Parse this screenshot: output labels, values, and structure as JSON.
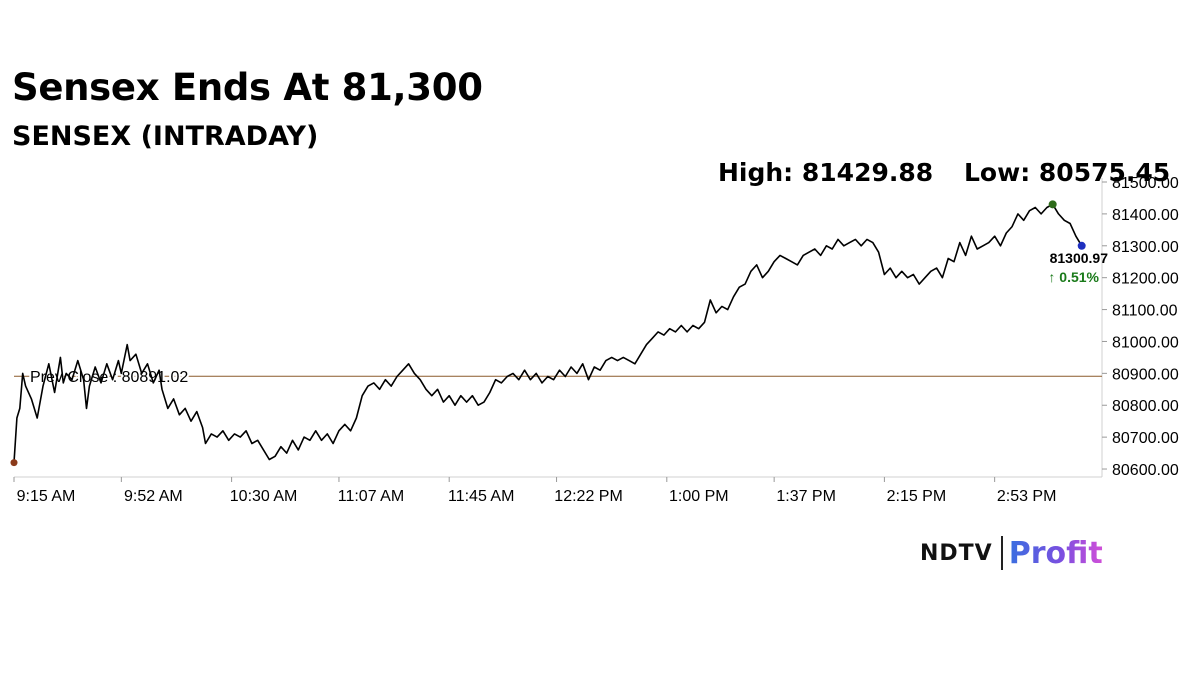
{
  "header": {
    "headline": "Sensex Ends At 81,300",
    "subheadline": "SENSEX (INTRADAY)",
    "high_label": "High: 81429.88",
    "low_label": "Low: 80575.45"
  },
  "brand": {
    "ndtv": "NDTV",
    "profit": "Profit"
  },
  "colors": {
    "line": "#000000",
    "prev_close_line": "#8b5a2b",
    "up_change": "#1a7a1a",
    "start_dot": "#8b3a1a",
    "high_dot": "#2e6b1a",
    "last_dot": "#1f2fbf"
  },
  "chart_data": {
    "type": "line",
    "title": "SENSEX (INTRADAY)",
    "xlabel": "",
    "ylabel": "",
    "grid": false,
    "ylim": [
      80575,
      81500
    ],
    "y_ticks": [
      81500,
      81400,
      81300,
      81200,
      81100,
      81000,
      80900,
      80800,
      80700,
      80600
    ],
    "y_tick_labels": [
      "81500.00",
      "81400.00",
      "81300.00",
      "81200.00",
      "81100.00",
      "81000.00",
      "80900.00",
      "80800.00",
      "80700.00",
      "80600.00"
    ],
    "x_tick_labels": [
      "9:15 AM",
      "9:52 AM",
      "10:30 AM",
      "11:07 AM",
      "11:45 AM",
      "12:22 PM",
      "1:00 PM",
      "1:37 PM",
      "2:15 PM",
      "2:53 PM"
    ],
    "x_ticks_minutes": [
      555,
      592,
      630,
      667,
      705,
      742,
      780,
      817,
      855,
      893
    ],
    "xlim_minutes": [
      555,
      930
    ],
    "prev_close": {
      "label": "Prev Close : 80891.02",
      "value": 80891.02
    },
    "last": {
      "value_label": "81300.97",
      "change_label": "↑ 0.51%",
      "value": 81300.97
    },
    "high_point": {
      "x": 913,
      "y": 81430
    },
    "series": [
      {
        "values": [
          [
            555,
            80620
          ],
          [
            556,
            80760
          ],
          [
            557,
            80790
          ],
          [
            558,
            80900
          ],
          [
            559,
            80860
          ],
          [
            561,
            80820
          ],
          [
            563,
            80760
          ],
          [
            565,
            80860
          ],
          [
            567,
            80930
          ],
          [
            569,
            80840
          ],
          [
            571,
            80950
          ],
          [
            572,
            80870
          ],
          [
            573,
            80900
          ],
          [
            575,
            80880
          ],
          [
            577,
            80940
          ],
          [
            579,
            80880
          ],
          [
            580,
            80790
          ],
          [
            581,
            80860
          ],
          [
            583,
            80920
          ],
          [
            585,
            80870
          ],
          [
            587,
            80930
          ],
          [
            589,
            80880
          ],
          [
            591,
            80940
          ],
          [
            592,
            80900
          ],
          [
            594,
            80990
          ],
          [
            595,
            80940
          ],
          [
            597,
            80960
          ],
          [
            599,
            80900
          ],
          [
            601,
            80930
          ],
          [
            603,
            80870
          ],
          [
            605,
            80910
          ],
          [
            606,
            80850
          ],
          [
            608,
            80790
          ],
          [
            610,
            80820
          ],
          [
            612,
            80770
          ],
          [
            614,
            80790
          ],
          [
            616,
            80750
          ],
          [
            618,
            80780
          ],
          [
            620,
            80730
          ],
          [
            621,
            80680
          ],
          [
            623,
            80710
          ],
          [
            625,
            80700
          ],
          [
            627,
            80720
          ],
          [
            629,
            80690
          ],
          [
            631,
            80710
          ],
          [
            633,
            80700
          ],
          [
            635,
            80720
          ],
          [
            637,
            80680
          ],
          [
            639,
            80690
          ],
          [
            641,
            80660
          ],
          [
            643,
            80630
          ],
          [
            645,
            80640
          ],
          [
            647,
            80670
          ],
          [
            649,
            80650
          ],
          [
            651,
            80690
          ],
          [
            653,
            80660
          ],
          [
            655,
            80700
          ],
          [
            657,
            80690
          ],
          [
            659,
            80720
          ],
          [
            661,
            80690
          ],
          [
            663,
            80710
          ],
          [
            665,
            80680
          ],
          [
            667,
            80720
          ],
          [
            669,
            80740
          ],
          [
            671,
            80720
          ],
          [
            673,
            80760
          ],
          [
            675,
            80830
          ],
          [
            677,
            80860
          ],
          [
            679,
            80870
          ],
          [
            681,
            80850
          ],
          [
            683,
            80880
          ],
          [
            685,
            80860
          ],
          [
            687,
            80890
          ],
          [
            689,
            80910
          ],
          [
            691,
            80930
          ],
          [
            693,
            80900
          ],
          [
            695,
            80880
          ],
          [
            697,
            80850
          ],
          [
            699,
            80830
          ],
          [
            701,
            80850
          ],
          [
            703,
            80810
          ],
          [
            705,
            80830
          ],
          [
            707,
            80800
          ],
          [
            709,
            80830
          ],
          [
            711,
            80810
          ],
          [
            713,
            80830
          ],
          [
            715,
            80800
          ],
          [
            717,
            80810
          ],
          [
            719,
            80840
          ],
          [
            721,
            80880
          ],
          [
            723,
            80870
          ],
          [
            725,
            80890
          ],
          [
            727,
            80900
          ],
          [
            729,
            80880
          ],
          [
            731,
            80910
          ],
          [
            733,
            80880
          ],
          [
            735,
            80900
          ],
          [
            737,
            80870
          ],
          [
            739,
            80890
          ],
          [
            741,
            80880
          ],
          [
            743,
            80910
          ],
          [
            745,
            80890
          ],
          [
            747,
            80920
          ],
          [
            749,
            80900
          ],
          [
            751,
            80930
          ],
          [
            753,
            80880
          ],
          [
            755,
            80920
          ],
          [
            757,
            80910
          ],
          [
            759,
            80940
          ],
          [
            761,
            80950
          ],
          [
            763,
            80940
          ],
          [
            765,
            80950
          ],
          [
            767,
            80940
          ],
          [
            769,
            80930
          ],
          [
            771,
            80960
          ],
          [
            773,
            80990
          ],
          [
            775,
            81010
          ],
          [
            777,
            81030
          ],
          [
            779,
            81020
          ],
          [
            781,
            81040
          ],
          [
            783,
            81030
          ],
          [
            785,
            81050
          ],
          [
            787,
            81030
          ],
          [
            789,
            81050
          ],
          [
            791,
            81040
          ],
          [
            793,
            81060
          ],
          [
            795,
            81130
          ],
          [
            797,
            81090
          ],
          [
            799,
            81110
          ],
          [
            801,
            81100
          ],
          [
            803,
            81140
          ],
          [
            805,
            81170
          ],
          [
            807,
            81180
          ],
          [
            809,
            81220
          ],
          [
            811,
            81240
          ],
          [
            813,
            81200
          ],
          [
            815,
            81220
          ],
          [
            817,
            81250
          ],
          [
            819,
            81270
          ],
          [
            821,
            81260
          ],
          [
            823,
            81250
          ],
          [
            825,
            81240
          ],
          [
            827,
            81270
          ],
          [
            829,
            81280
          ],
          [
            831,
            81290
          ],
          [
            833,
            81270
          ],
          [
            835,
            81300
          ],
          [
            837,
            81290
          ],
          [
            839,
            81320
          ],
          [
            841,
            81300
          ],
          [
            843,
            81310
          ],
          [
            845,
            81320
          ],
          [
            847,
            81300
          ],
          [
            849,
            81320
          ],
          [
            851,
            81310
          ],
          [
            853,
            81280
          ],
          [
            855,
            81210
          ],
          [
            857,
            81230
          ],
          [
            859,
            81200
          ],
          [
            861,
            81220
          ],
          [
            863,
            81200
          ],
          [
            865,
            81210
          ],
          [
            867,
            81180
          ],
          [
            869,
            81200
          ],
          [
            871,
            81220
          ],
          [
            873,
            81230
          ],
          [
            875,
            81200
          ],
          [
            877,
            81260
          ],
          [
            879,
            81250
          ],
          [
            881,
            81310
          ],
          [
            883,
            81270
          ],
          [
            885,
            81330
          ],
          [
            887,
            81290
          ],
          [
            889,
            81300
          ],
          [
            891,
            81310
          ],
          [
            893,
            81330
          ],
          [
            895,
            81300
          ],
          [
            897,
            81340
          ],
          [
            899,
            81360
          ],
          [
            901,
            81400
          ],
          [
            903,
            81380
          ],
          [
            905,
            81410
          ],
          [
            907,
            81420
          ],
          [
            909,
            81400
          ],
          [
            911,
            81420
          ],
          [
            913,
            81430
          ],
          [
            915,
            81400
          ],
          [
            917,
            81380
          ],
          [
            919,
            81370
          ],
          [
            921,
            81330
          ],
          [
            923,
            81300
          ]
        ]
      }
    ]
  }
}
